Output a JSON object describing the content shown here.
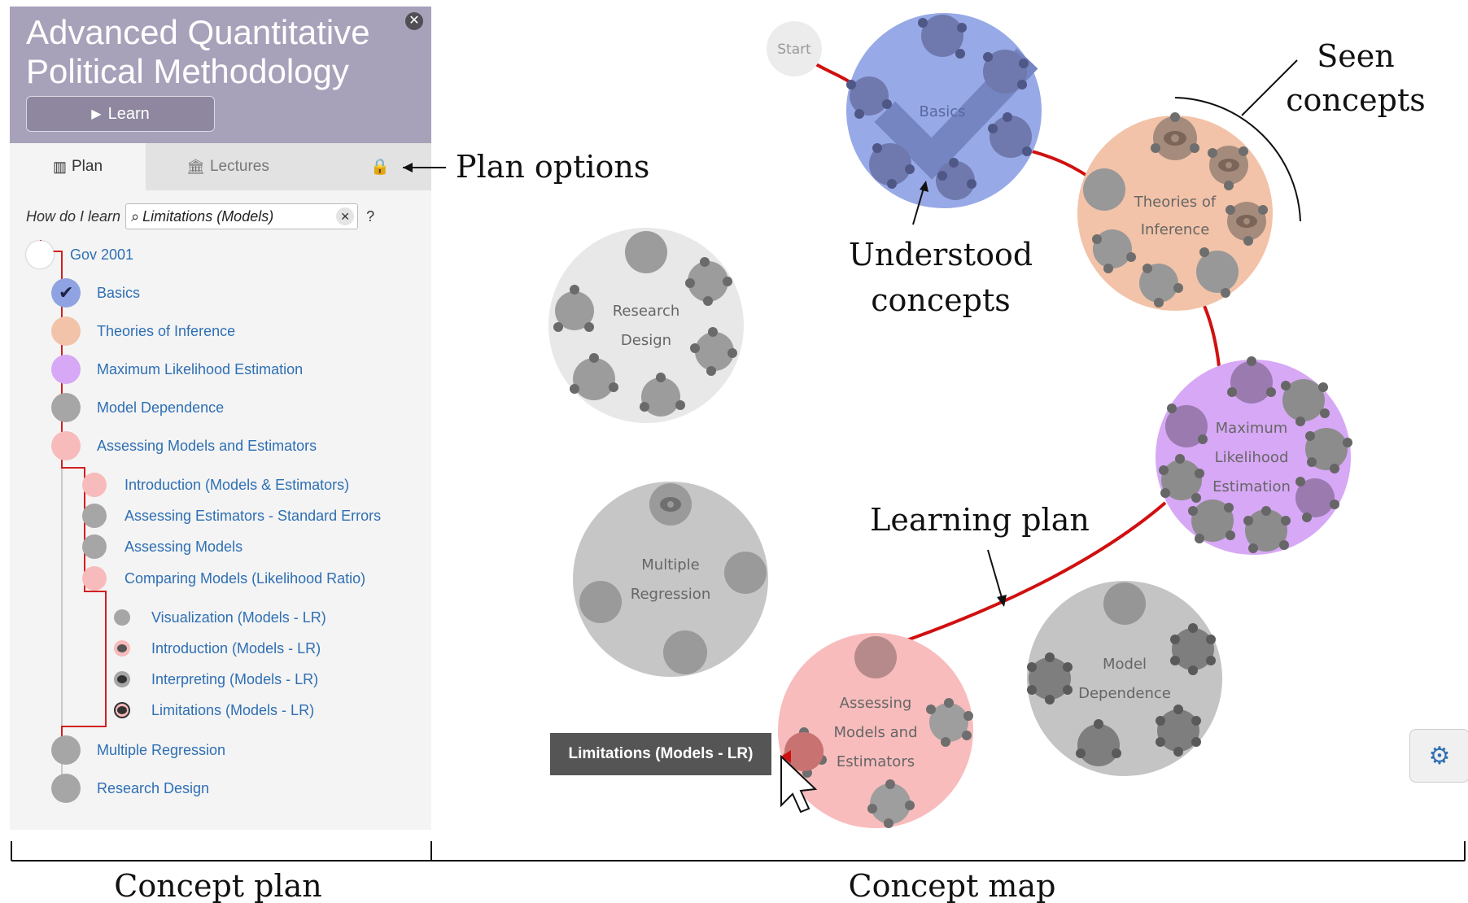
{
  "panel": {
    "course_title": "Advanced Quantitative Political Methodology",
    "learn_label": "Learn",
    "tabs": [
      {
        "label": "Plan"
      },
      {
        "label": "Lectures"
      }
    ],
    "search": {
      "prompt": "How do I learn",
      "value": "Limitations (Models)",
      "help": "?"
    },
    "plan_items": [
      {
        "label": "Gov 2001"
      },
      {
        "label": "Basics"
      },
      {
        "label": "Theories of Inference"
      },
      {
        "label": "Maximum Likelihood Estimation"
      },
      {
        "label": "Model Dependence"
      },
      {
        "label": "Assessing Models and Estimators"
      },
      {
        "label": "Introduction (Models & Estimators)"
      },
      {
        "label": "Assessing Estimators - Standard Errors"
      },
      {
        "label": "Assessing Models"
      },
      {
        "label": "Comparing Models (Likelihood Ratio)"
      },
      {
        "label": "Visualization (Models - LR)"
      },
      {
        "label": "Introduction (Models - LR)"
      },
      {
        "label": "Interpreting (Models - LR)"
      },
      {
        "label": "Limitations (Models - LR)"
      },
      {
        "label": "Multiple Regression"
      },
      {
        "label": "Research Design"
      }
    ]
  },
  "map": {
    "start_label": "Start",
    "clusters": {
      "basics": "Basics",
      "theories": [
        "Theories of",
        "Inference"
      ],
      "mle": [
        "Maximum",
        "Likelihood",
        "Estimation"
      ],
      "research": [
        "Research",
        "Design"
      ],
      "multiple": [
        "Multiple",
        "Regression"
      ],
      "assessing": [
        "Assessing",
        "Models and",
        "Estimators"
      ],
      "model_dep": [
        "Model",
        "Dependence"
      ]
    },
    "tooltip": "Limitations (Models - LR)"
  },
  "annotations": {
    "plan_options": "Plan options",
    "understood": [
      "Understood",
      "concepts"
    ],
    "seen": [
      "Seen",
      "concepts"
    ],
    "learning_plan": "Learning plan",
    "concept_plan": "Concept plan",
    "concept_map": "Concept map"
  }
}
